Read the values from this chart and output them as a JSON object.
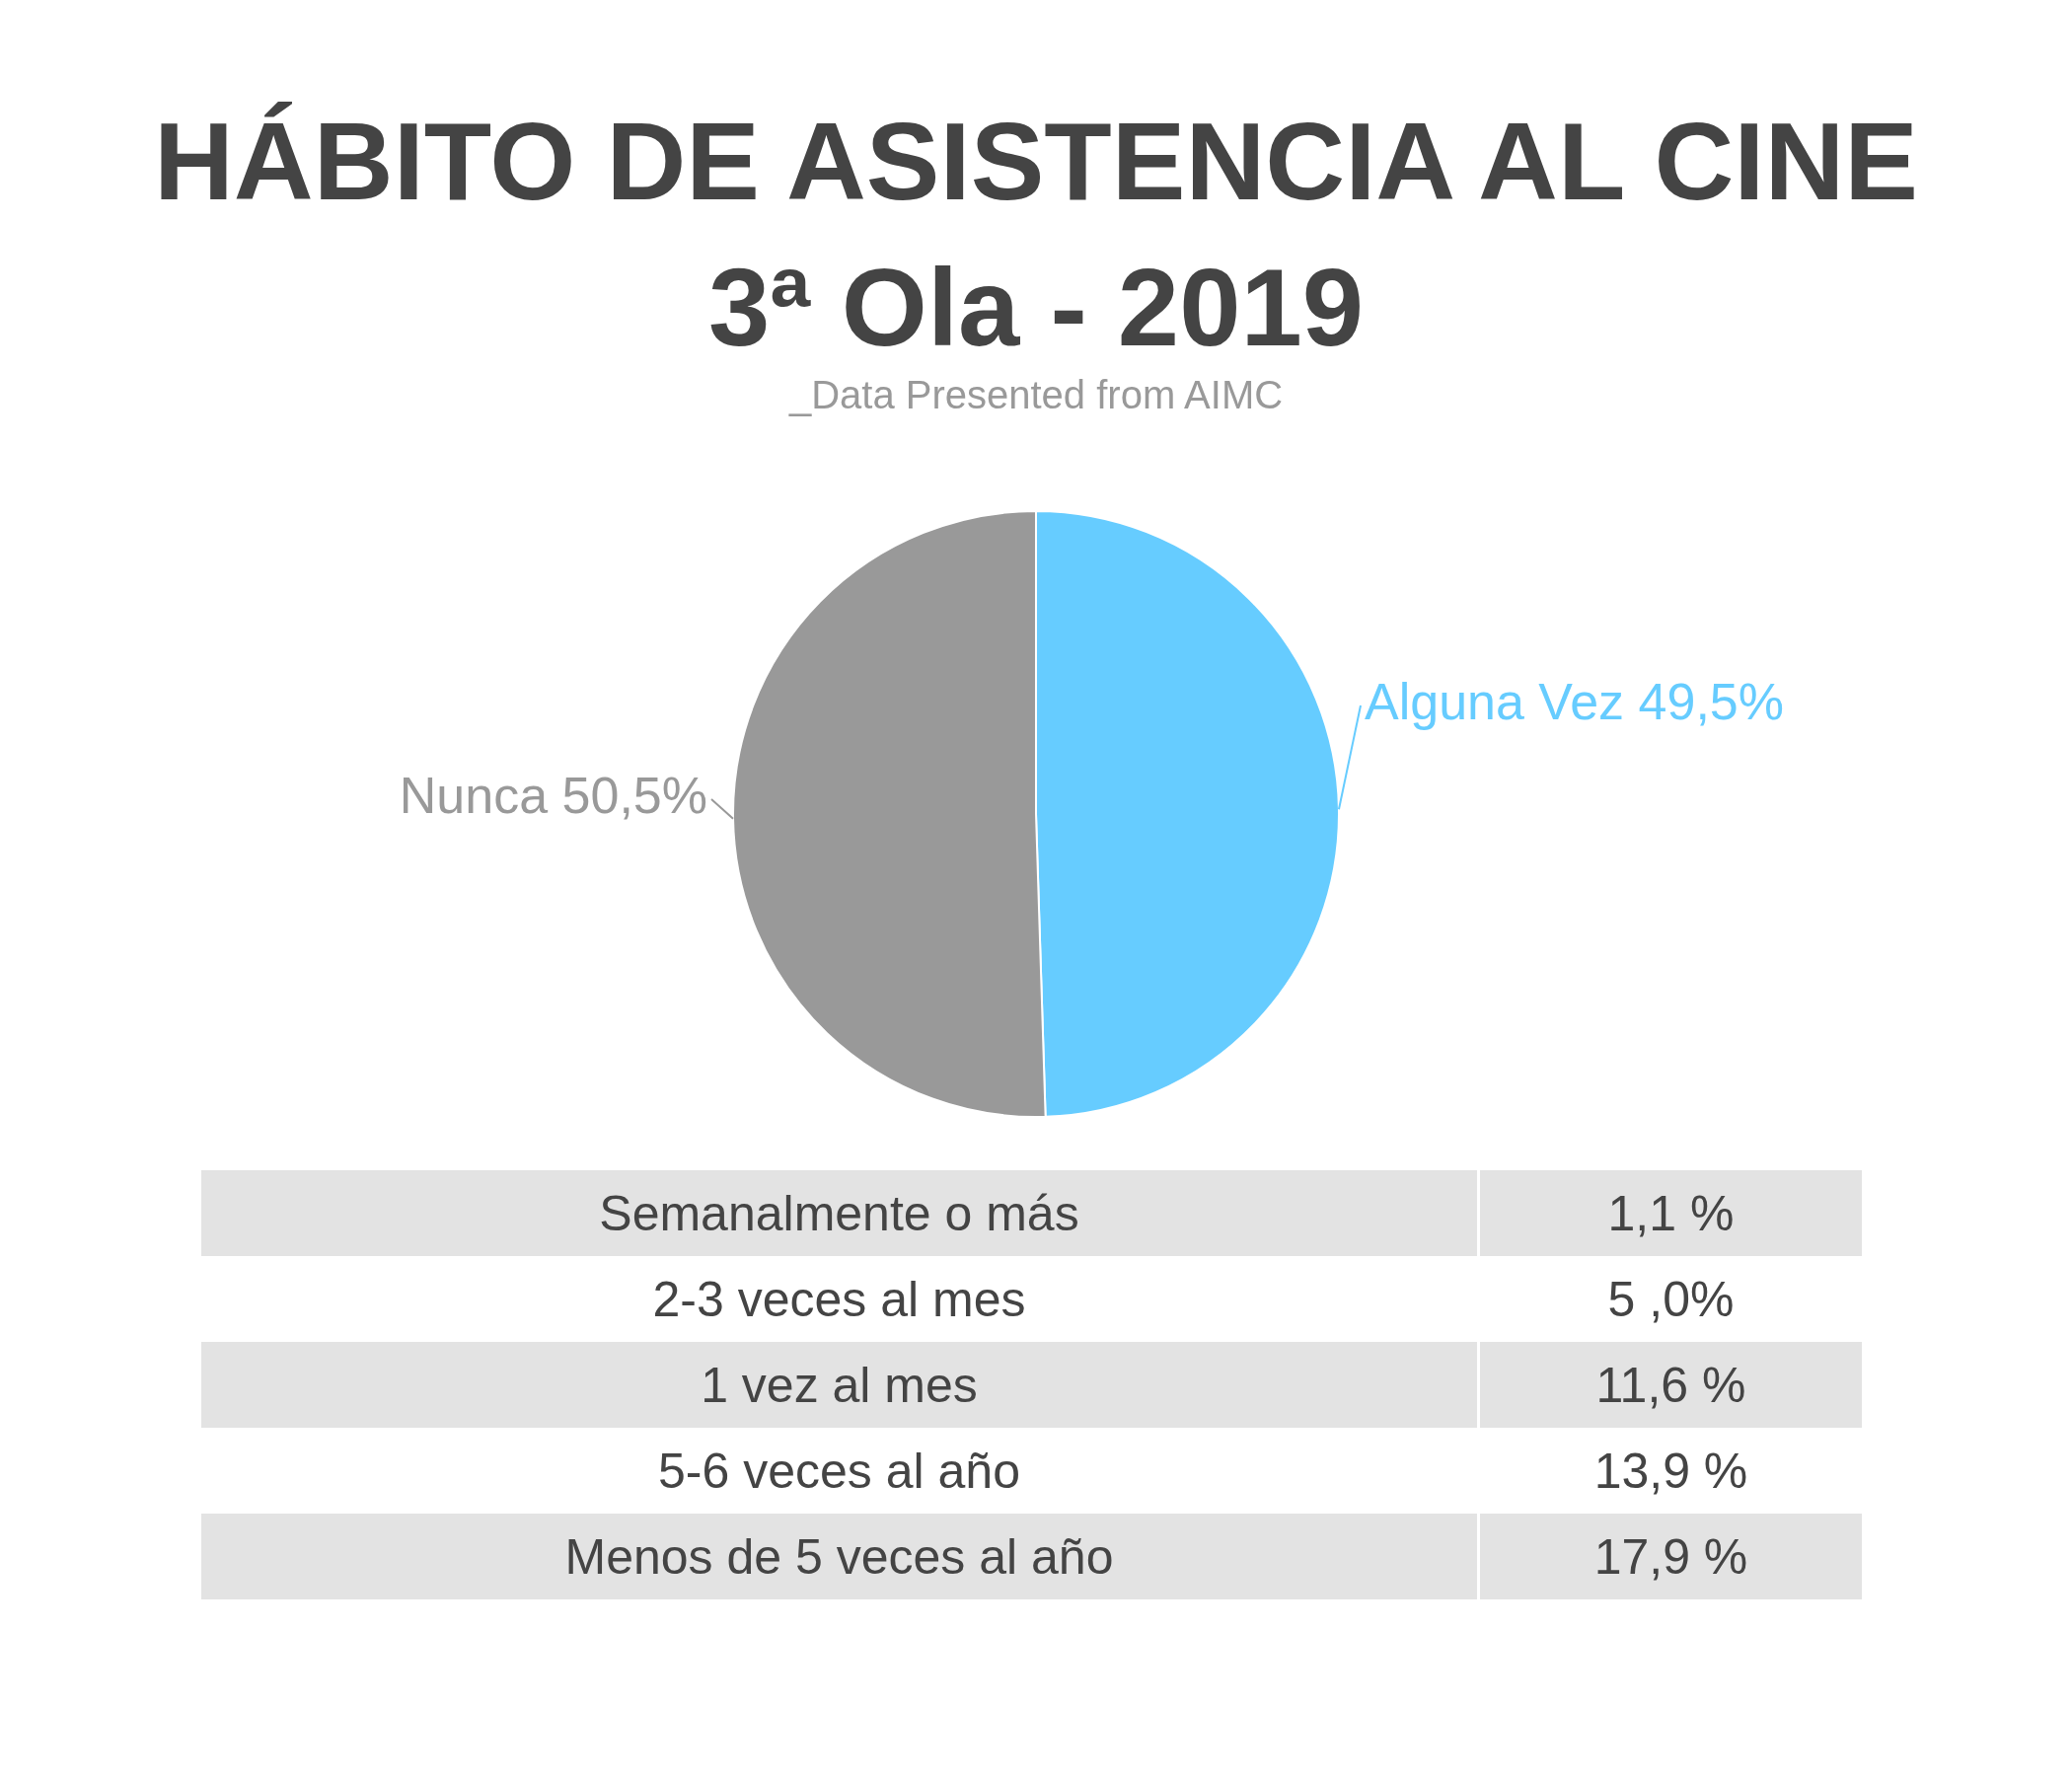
{
  "chart_data": [
    {
      "type": "pie",
      "title": "HÁBITO DE ASISTENCIA AL CINE\n3ª Ola - 2019",
      "subtitle": "_Data Presented from AIMC",
      "categories": [
        "Alguna Vez",
        "Nunca"
      ],
      "values": [
        49.5,
        50.5
      ],
      "colors": [
        "#66ccff",
        "#999999"
      ],
      "value_labels": [
        "49,5%",
        "50,5%"
      ],
      "legend": false
    },
    {
      "type": "other",
      "categories": [
        "Semanalmente o más",
        "2-3 veces al mes",
        "1 vez al mes",
        "5-6 veces al año",
        "Menos de 5 veces al año"
      ],
      "value_labels": [
        "1,1 %",
        "5 ,0%",
        "11,6 %",
        "13,9 %",
        "17,9 %"
      ]
    }
  ]
}
